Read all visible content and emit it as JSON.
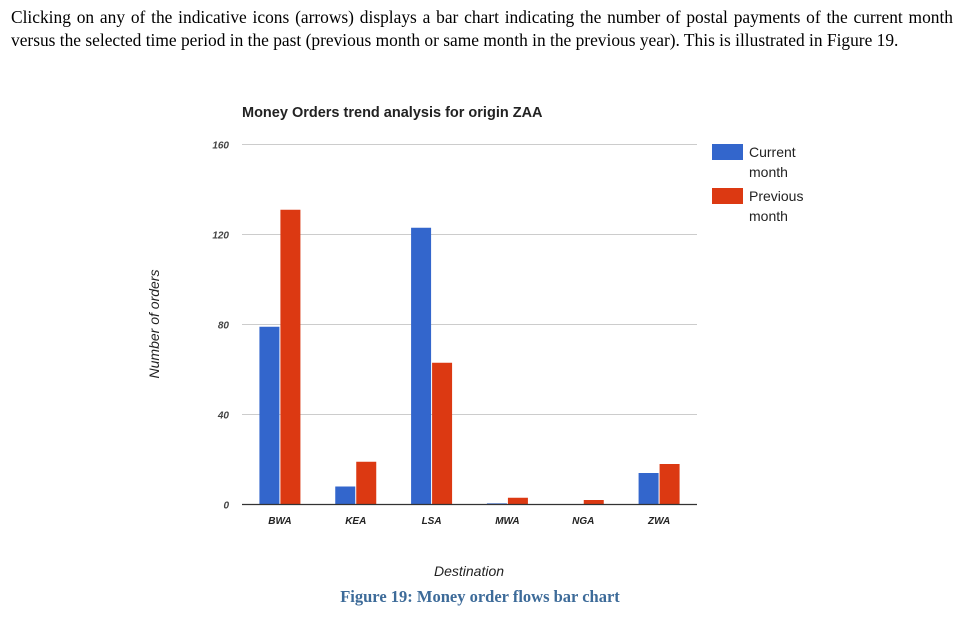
{
  "document": {
    "intro_text": "Clicking on any of the indicative icons (arrows) displays a bar chart indicating the number of postal payments of the current month versus the selected time period in the past (previous month or same month in the previous year). This is illustrated in Figure 19.",
    "caption": "Figure 19: Money order flows bar chart"
  },
  "chart_data": {
    "type": "bar",
    "title": "Money Orders trend analysis for origin ZAA",
    "xlabel": "Destination",
    "ylabel": "Number of orders",
    "categories": [
      "BWA",
      "KEA",
      "LSA",
      "MWA",
      "NGA",
      "ZWA"
    ],
    "series": [
      {
        "name": "Current month",
        "legend_lines": [
          "Current",
          "month"
        ],
        "color": "#3366cc",
        "values": [
          79,
          8,
          123,
          0.5,
          0,
          14
        ]
      },
      {
        "name": "Previous month",
        "legend_lines": [
          "Previous",
          "month"
        ],
        "color": "#dc3912",
        "values": [
          131,
          19,
          63,
          3,
          2,
          18
        ]
      }
    ],
    "ylim": [
      0,
      160
    ],
    "yticks": [
      "0",
      "40",
      "80",
      "120",
      "160"
    ],
    "grid": true,
    "legend_position": "right"
  }
}
